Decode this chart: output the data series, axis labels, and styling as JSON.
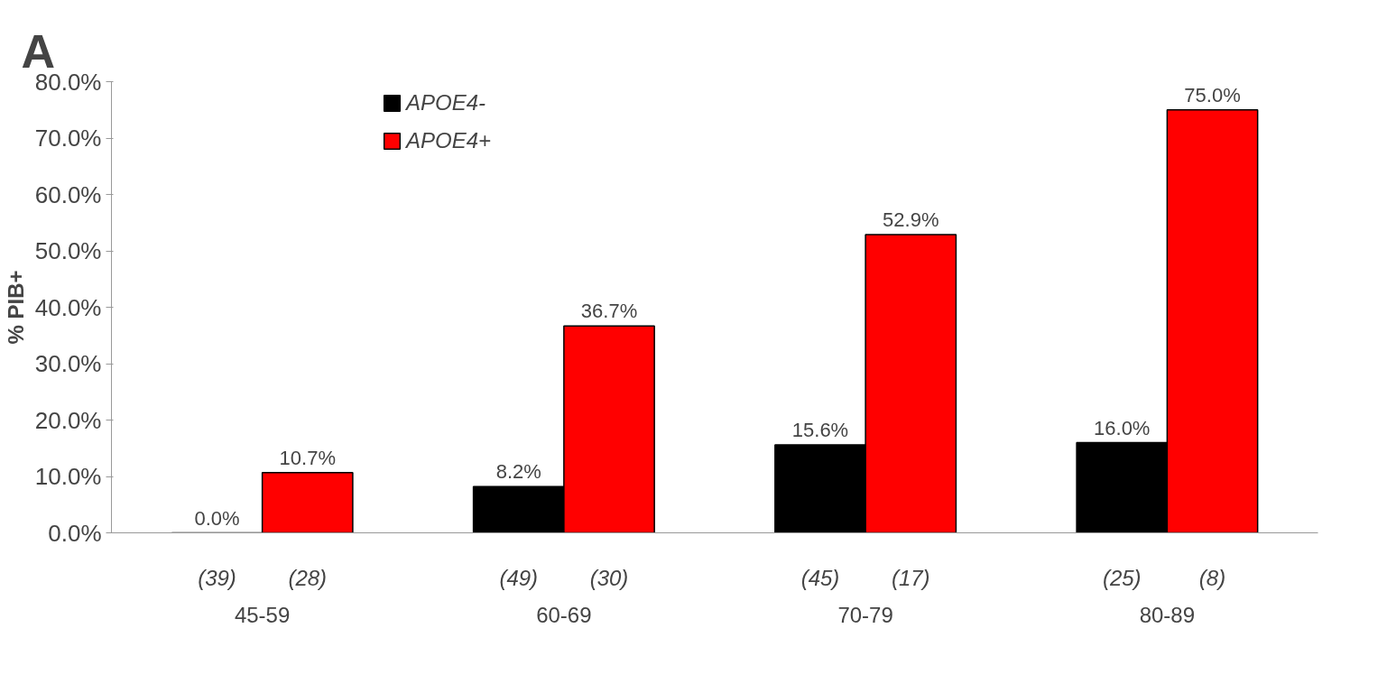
{
  "chart_data": {
    "type": "bar",
    "title": "A",
    "ylabel": "% PIB+",
    "categories": [
      "45-59",
      "60-69",
      "70-79",
      "80-89"
    ],
    "series": [
      {
        "name": "APOE4-",
        "color": "#000000",
        "values": [
          0.0,
          8.2,
          15.6,
          16.0
        ],
        "value_labels": [
          "0.0%",
          "8.2%",
          "15.6%",
          "16.0%"
        ]
      },
      {
        "name": "APOE4+",
        "color": "#ff0000",
        "values": [
          10.7,
          36.7,
          52.9,
          75.0
        ],
        "value_labels": [
          "10.7%",
          "36.7%",
          "52.9%",
          "75.0%"
        ]
      }
    ],
    "ylim": [
      0,
      80
    ],
    "yticks": [
      {
        "value": 0,
        "label": "0.0%"
      },
      {
        "value": 10,
        "label": "10.0%"
      },
      {
        "value": 20,
        "label": "20.0%"
      },
      {
        "value": 30,
        "label": "30.0%"
      },
      {
        "value": 40,
        "label": "40.0%"
      },
      {
        "value": 50,
        "label": "50.0%"
      },
      {
        "value": 60,
        "label": "60.0%"
      },
      {
        "value": 70,
        "label": "70.0%"
      },
      {
        "value": 80,
        "label": "80.0%"
      }
    ],
    "annotations": [
      "(39)",
      "(28)",
      "(49)",
      "(30)",
      "(45)",
      "(17)",
      "(25)",
      "(8)"
    ],
    "grid": false,
    "legend": "top left"
  }
}
